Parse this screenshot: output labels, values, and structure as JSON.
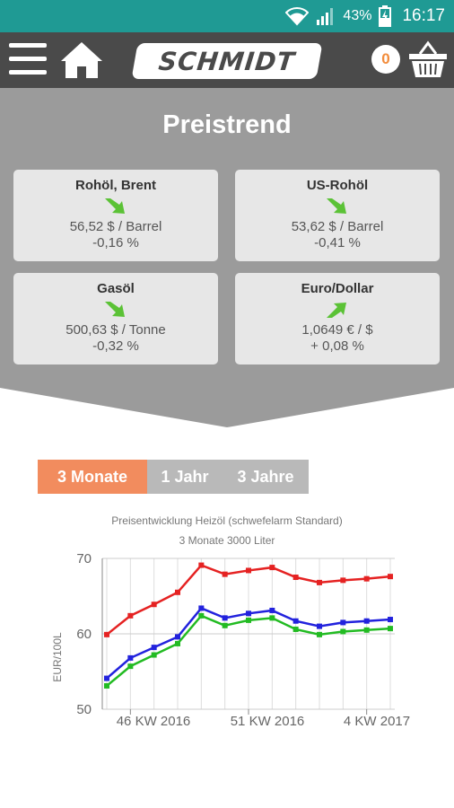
{
  "status": {
    "battery": "43%",
    "time": "16:17"
  },
  "header": {
    "logo_text": "SCHMIDT",
    "cart_count": "0"
  },
  "preistrend": {
    "title": "Preistrend",
    "cards": [
      {
        "name": "Rohöl, Brent",
        "price": "56,52 $ / Barrel",
        "change": "-0,16 %",
        "trend": "down"
      },
      {
        "name": "US-Rohöl",
        "price": "53,62 $ / Barrel",
        "change": "-0,41 %",
        "trend": "down"
      },
      {
        "name": "Gasöl",
        "price": "500,63 $ / Tonne",
        "change": "-0,32 %",
        "trend": "down"
      },
      {
        "name": "Euro/Dollar",
        "price": "1,0649 € / $",
        "change": "+ 0,08 %",
        "trend": "up"
      }
    ]
  },
  "tabs": [
    {
      "label": "3 Monate",
      "active": true
    },
    {
      "label": "1 Jahr",
      "active": false
    },
    {
      "label": "3 Jahre",
      "active": false
    }
  ],
  "colors": {
    "teal": "#1f9a94",
    "header": "#4a4a4a",
    "panel": "#9b9b9b",
    "accent": "#f28c5e",
    "arrow_green": "#5bc236"
  },
  "chart_data": {
    "type": "line",
    "title": "Preisentwicklung Heizöl (schwefelarm Standard)",
    "subtitle": "3 Monate 3000 Liter",
    "ylabel": "EUR/100L",
    "xlabel": "",
    "ylim": [
      50,
      70
    ],
    "yticks": [
      "70",
      "60",
      "50"
    ],
    "xtick_labels": [
      "46 KW 2016",
      "51 KW 2016",
      "4 KW 2017"
    ],
    "x_count": 13,
    "xtick_index": [
      1,
      6,
      11
    ],
    "grid": true,
    "series": [
      {
        "color": "#e52222",
        "values": [
          59.9,
          62.4,
          63.9,
          65.5,
          69.1,
          67.9,
          68.4,
          68.8,
          67.5,
          66.8,
          67.1,
          67.3,
          67.6
        ]
      },
      {
        "color": "#2222dd",
        "values": [
          54.1,
          56.8,
          58.2,
          59.6,
          63.4,
          62.1,
          62.7,
          63.1,
          61.7,
          61.0,
          61.5,
          61.7,
          61.9
        ]
      },
      {
        "color": "#22bb22",
        "values": [
          53.1,
          55.7,
          57.2,
          58.7,
          62.4,
          61.1,
          61.8,
          62.1,
          60.6,
          59.9,
          60.3,
          60.5,
          60.7
        ]
      }
    ]
  }
}
